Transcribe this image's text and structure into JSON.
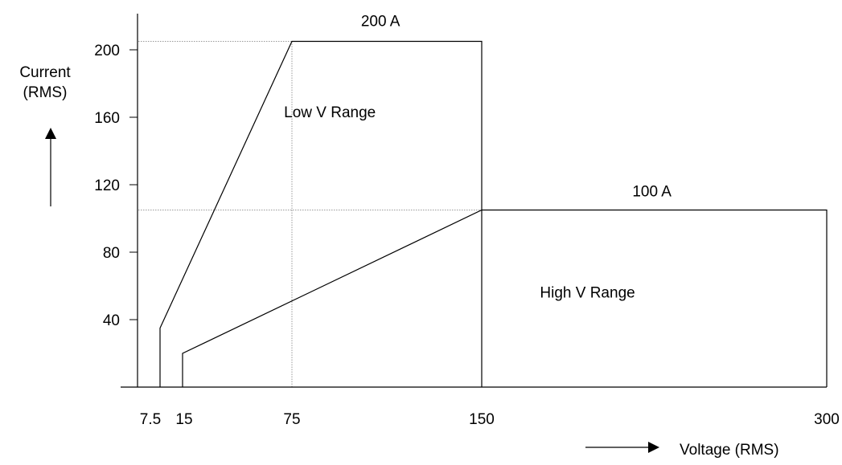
{
  "chart_data": {
    "type": "line",
    "title": "",
    "xlabel": "Voltage (RMS)",
    "ylabel": "Current (RMS)",
    "x_ticks": [
      {
        "value": 7.5,
        "label": "7.5"
      },
      {
        "value": 15,
        "label": "15"
      },
      {
        "value": 75,
        "label": "75"
      },
      {
        "value": 150,
        "label": "150"
      },
      {
        "value": 300,
        "label": "300"
      }
    ],
    "y_ticks": [
      {
        "value": 40,
        "label": "40"
      },
      {
        "value": 80,
        "label": "80"
      },
      {
        "value": 120,
        "label": "120"
      },
      {
        "value": 160,
        "label": "160"
      },
      {
        "value": 200,
        "label": "200"
      }
    ],
    "ylim": [
      0,
      210
    ],
    "series": [
      {
        "name": "Low V Range",
        "points": [
          [
            7.5,
            0
          ],
          [
            7.5,
            35
          ],
          [
            75,
            205
          ],
          [
            150,
            205
          ],
          [
            150,
            0
          ]
        ]
      },
      {
        "name": "High V Range",
        "points": [
          [
            15,
            0
          ],
          [
            15,
            20
          ],
          [
            150,
            105
          ],
          [
            300,
            105
          ],
          [
            300,
            0
          ]
        ]
      }
    ],
    "guides": [
      {
        "type": "h",
        "y": 205,
        "x_from": 0,
        "x_to": 75
      },
      {
        "type": "h",
        "y": 105,
        "x_from": 0,
        "x_to": 150
      },
      {
        "type": "v",
        "x": 75,
        "y_from": 0,
        "y_to": 205
      }
    ],
    "annotations": [
      {
        "text": "200 A",
        "x": 110,
        "y": 214
      },
      {
        "text": "100 A",
        "x": 224,
        "y": 113
      },
      {
        "text": "Low V Range",
        "x": 90,
        "y": 160
      },
      {
        "text": "High V Range",
        "x": 196,
        "y": 53
      }
    ]
  }
}
